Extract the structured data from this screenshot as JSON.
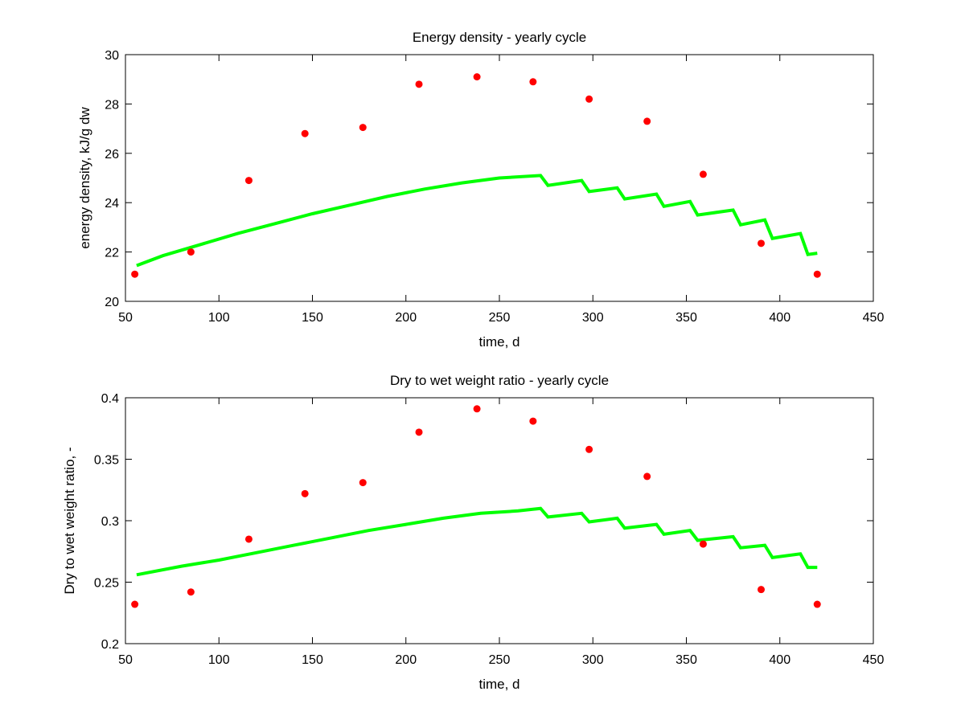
{
  "chart_data": [
    {
      "type": "scatter",
      "title": "Energy density - yearly cycle",
      "xlabel": "time, d",
      "ylabel": "energy density, kJ/g dw",
      "xlim": [
        50,
        450
      ],
      "ylim": [
        20,
        30
      ],
      "xticks": [
        50,
        100,
        150,
        200,
        250,
        300,
        350,
        400,
        450
      ],
      "yticks": [
        20,
        22,
        24,
        26,
        28,
        30
      ],
      "grid": false,
      "legend": "none",
      "series": [
        {
          "kind": "points",
          "color": "#ff0000",
          "x": [
            55,
            85,
            116,
            146,
            177,
            207,
            238,
            268,
            298,
            329,
            359,
            390,
            420
          ],
          "y": [
            21.1,
            22.0,
            24.9,
            26.8,
            27.05,
            28.8,
            29.1,
            28.9,
            28.2,
            27.3,
            25.15,
            22.35,
            21.1
          ]
        },
        {
          "kind": "line",
          "color": "#00ff00",
          "x": [
            56,
            70,
            90,
            110,
            130,
            150,
            170,
            190,
            210,
            230,
            250,
            272,
            276,
            294,
            298,
            313,
            317,
            334,
            338,
            352,
            356,
            375,
            379,
            392,
            396,
            411,
            415,
            420
          ],
          "y": [
            21.45,
            21.85,
            22.3,
            22.75,
            23.15,
            23.55,
            23.9,
            24.25,
            24.55,
            24.8,
            25.0,
            25.1,
            24.7,
            24.9,
            24.45,
            24.6,
            24.15,
            24.35,
            23.85,
            24.05,
            23.5,
            23.7,
            23.1,
            23.3,
            22.55,
            22.75,
            21.9,
            21.95
          ]
        }
      ]
    },
    {
      "type": "scatter",
      "title": "Dry to wet weight ratio - yearly cycle",
      "xlabel": "time, d",
      "ylabel": "Dry to wet weight ratio, -",
      "xlim": [
        50,
        450
      ],
      "ylim": [
        0.2,
        0.4
      ],
      "xticks": [
        50,
        100,
        150,
        200,
        250,
        300,
        350,
        400,
        450
      ],
      "yticks": [
        0.2,
        0.25,
        0.3,
        0.35,
        0.4
      ],
      "grid": false,
      "legend": "none",
      "series": [
        {
          "kind": "points",
          "color": "#ff0000",
          "x": [
            55,
            85,
            116,
            146,
            177,
            207,
            238,
            268,
            298,
            329,
            359,
            390,
            420
          ],
          "y": [
            0.232,
            0.242,
            0.285,
            0.322,
            0.331,
            0.372,
            0.391,
            0.381,
            0.358,
            0.336,
            0.281,
            0.244,
            0.232
          ]
        },
        {
          "kind": "line",
          "color": "#00ff00",
          "x": [
            56,
            80,
            100,
            120,
            140,
            160,
            180,
            200,
            220,
            240,
            260,
            272,
            276,
            294,
            298,
            313,
            317,
            334,
            338,
            352,
            356,
            375,
            379,
            392,
            396,
            411,
            415,
            420
          ],
          "y": [
            0.256,
            0.263,
            0.268,
            0.274,
            0.28,
            0.286,
            0.292,
            0.297,
            0.302,
            0.306,
            0.308,
            0.31,
            0.303,
            0.306,
            0.299,
            0.302,
            0.294,
            0.297,
            0.289,
            0.292,
            0.284,
            0.287,
            0.278,
            0.28,
            0.27,
            0.273,
            0.262,
            0.262
          ]
        }
      ]
    }
  ]
}
